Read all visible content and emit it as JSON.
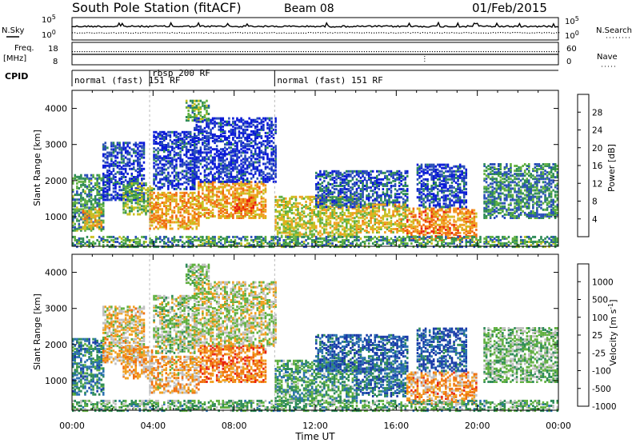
{
  "header": {
    "station": "South Pole Station (fitACF)",
    "beam": "Beam 08",
    "date": "01/Feb/2015"
  },
  "left_labels": {
    "nsky": "N.Sky",
    "freq_line1": "Freq.",
    "freq_line2": "[MHz]",
    "cpid": "CPID"
  },
  "right_labels": {
    "nsearch": "N.Search",
    "nave": "Nave"
  },
  "noise_axis": {
    "left_top": "10^5",
    "left_bottom": "10^0",
    "right_top": "10^5",
    "right_bottom": "10^0"
  },
  "freq_axis": {
    "left_top": "18",
    "left_bottom": "8",
    "right_top": "60",
    "right_bottom": "0"
  },
  "cpid": [
    {
      "label": "normal (fast) 151 RF",
      "start": 0,
      "end": 3.83
    },
    {
      "label": "rbsp 200 RF",
      "start": 3.83,
      "end": 10.0
    },
    {
      "label": "normal (fast) 151 RF",
      "start": 10.0,
      "end": 24
    }
  ],
  "chart_data": [
    {
      "type": "heatmap",
      "name": "Power",
      "xlabel": "",
      "ylabel": "Slant Range [km]",
      "xlim": [
        0,
        24
      ],
      "ylim": [
        180,
        4500
      ],
      "yticks": [
        1000,
        2000,
        3000,
        4000
      ],
      "colorbar": {
        "label": "Power [dB]",
        "ticks": [
          "4",
          "8",
          "12",
          "16",
          "20",
          "24",
          "28"
        ],
        "colors": [
          "#0a1ad8",
          "#2a4fb8",
          "#2e8b57",
          "#60b040",
          "#c8c020",
          "#f0a020",
          "#f06a10",
          "#e82010"
        ]
      },
      "regions": [
        {
          "t0": 0.0,
          "t1": 1.6,
          "r0": 650,
          "r1": 2200,
          "level": 0.35
        },
        {
          "t0": 0.5,
          "t1": 1.5,
          "r0": 700,
          "r1": 1300,
          "level": 0.65
        },
        {
          "t0": 1.5,
          "t1": 3.6,
          "r0": 1500,
          "r1": 3100,
          "level": 0.12
        },
        {
          "t0": 2.5,
          "t1": 4.0,
          "r0": 1100,
          "r1": 2000,
          "level": 0.45
        },
        {
          "t0": 3.8,
          "t1": 6.2,
          "r0": 700,
          "r1": 1700,
          "level": 0.7
        },
        {
          "t0": 4.0,
          "t1": 6.0,
          "r0": 1800,
          "r1": 3400,
          "level": 0.12
        },
        {
          "t0": 5.6,
          "t1": 6.7,
          "r0": 3700,
          "r1": 4250,
          "level": 0.4
        },
        {
          "t0": 6.2,
          "t1": 9.5,
          "r0": 1000,
          "r1": 2000,
          "level": 0.7
        },
        {
          "t0": 8.0,
          "t1": 9.0,
          "r0": 1200,
          "r1": 1600,
          "level": 0.85
        },
        {
          "t0": 6.0,
          "t1": 10.0,
          "r0": 2000,
          "r1": 3800,
          "level": 0.1
        },
        {
          "t0": 10.0,
          "t1": 14.0,
          "r0": 500,
          "r1": 1600,
          "level": 0.55
        },
        {
          "t0": 12.0,
          "t1": 16.5,
          "r0": 1300,
          "r1": 2300,
          "level": 0.2
        },
        {
          "t0": 14.0,
          "t1": 16.5,
          "r0": 600,
          "r1": 1400,
          "level": 0.6
        },
        {
          "t0": 16.5,
          "t1": 20.0,
          "r0": 400,
          "r1": 1300,
          "level": 0.75
        },
        {
          "t0": 17.0,
          "t1": 19.5,
          "r0": 1300,
          "r1": 2500,
          "level": 0.15
        },
        {
          "t0": 20.3,
          "t1": 24.0,
          "r0": 1000,
          "r1": 2500,
          "level": 0.3
        },
        {
          "t0": 0.0,
          "t1": 24.0,
          "r0": 200,
          "r1": 500,
          "level": 0.35
        }
      ]
    },
    {
      "type": "heatmap",
      "name": "Velocity",
      "xlabel": "Time UT",
      "ylabel": "Slant Range [km]",
      "xlim": [
        0,
        24
      ],
      "ylim": [
        180,
        4500
      ],
      "yticks": [
        1000,
        2000,
        3000,
        4000
      ],
      "xticks": [
        "00:00",
        "04:00",
        "08:00",
        "12:00",
        "16:00",
        "20:00",
        "00:00"
      ],
      "colorbar": {
        "label": "Velocity [m s^-1]",
        "ticks": [
          "1000",
          "500",
          "100",
          "25",
          "-25",
          "-100",
          "-500",
          "-1000"
        ],
        "colors": [
          "#1a3aa8",
          "#2a70b0",
          "#2e8b57",
          "#60b040",
          "#c0c0c0",
          "#f0a020",
          "#f07010",
          "#e82010"
        ]
      },
      "regions": [
        {
          "t0": 0.0,
          "t1": 1.6,
          "r0": 650,
          "r1": 2200,
          "level": 0.25
        },
        {
          "t0": 1.5,
          "t1": 3.6,
          "r0": 1500,
          "r1": 3100,
          "level": 0.62
        },
        {
          "t0": 2.5,
          "t1": 4.0,
          "r0": 1100,
          "r1": 2000,
          "level": 0.7
        },
        {
          "t0": 3.8,
          "t1": 6.2,
          "r0": 700,
          "r1": 1700,
          "level": 0.66
        },
        {
          "t0": 4.0,
          "t1": 6.0,
          "r0": 1800,
          "r1": 3400,
          "level": 0.5
        },
        {
          "t0": 5.6,
          "t1": 6.7,
          "r0": 3700,
          "r1": 4250,
          "level": 0.48
        },
        {
          "t0": 6.2,
          "t1": 9.5,
          "r0": 1000,
          "r1": 2000,
          "level": 0.78
        },
        {
          "t0": 6.0,
          "t1": 10.0,
          "r0": 2000,
          "r1": 3800,
          "level": 0.55
        },
        {
          "t0": 10.0,
          "t1": 14.0,
          "r0": 500,
          "r1": 1600,
          "level": 0.35
        },
        {
          "t0": 12.0,
          "t1": 16.5,
          "r0": 1300,
          "r1": 2300,
          "level": 0.15
        },
        {
          "t0": 14.0,
          "t1": 16.5,
          "r0": 600,
          "r1": 1400,
          "level": 0.2
        },
        {
          "t0": 16.5,
          "t1": 20.0,
          "r0": 400,
          "r1": 1300,
          "level": 0.72
        },
        {
          "t0": 17.0,
          "t1": 19.5,
          "r0": 1300,
          "r1": 2500,
          "level": 0.12
        },
        {
          "t0": 20.3,
          "t1": 24.0,
          "r0": 1000,
          "r1": 2500,
          "level": 0.45
        },
        {
          "t0": 0.0,
          "t1": 24.0,
          "r0": 200,
          "r1": 500,
          "level": 0.4
        }
      ]
    }
  ]
}
